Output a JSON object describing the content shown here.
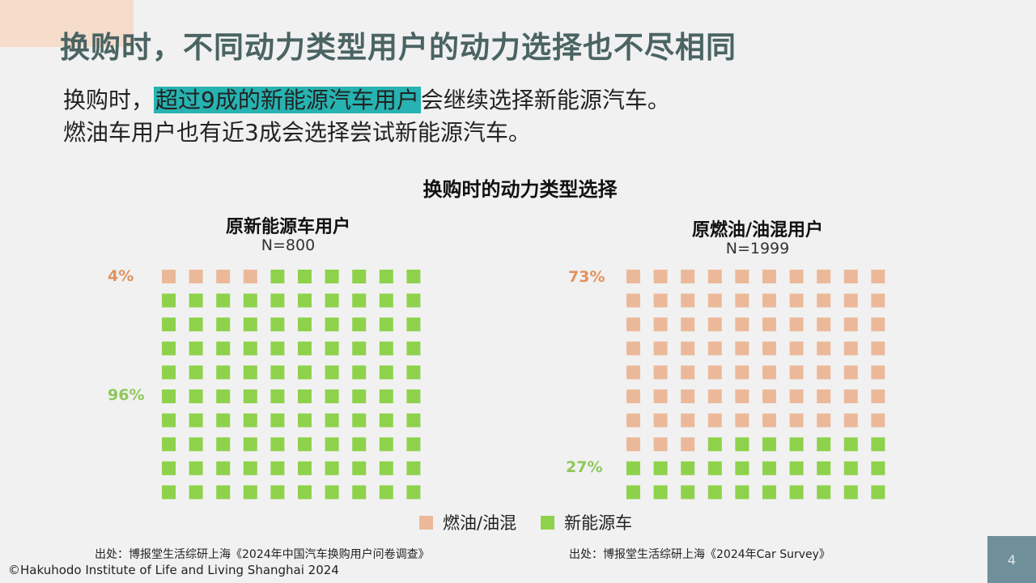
{
  "header": {
    "title": "换购时，不同动力类型用户的动力选择也不尽相同"
  },
  "summary": {
    "line1_prefix": "换购时，",
    "line1_highlight": "超过9成的新能源汽车用户",
    "line1_suffix": "会继续选择新能源汽车。",
    "line2": "燃油车用户也有近3成会选择尝试新能源汽车。"
  },
  "colors": {
    "fuel": "#ebb99a",
    "nev": "#8ed24b",
    "fuel_text": "#e2925f",
    "nev_text": "#8fc85a",
    "title": "#4a6463",
    "highlight": "#27b3b1"
  },
  "chart_data": {
    "type": "waffle",
    "title": "换购时的动力类型选择",
    "legend": [
      "燃油/油混",
      "新能源车"
    ],
    "legend_position": "bottom",
    "panels": [
      {
        "title": "原新能源车用户",
        "n_label": "N=800",
        "series": [
          {
            "name": "燃油/油混",
            "value": 4,
            "label": "4%"
          },
          {
            "name": "新能源车",
            "value": 96,
            "label": "96%"
          }
        ]
      },
      {
        "title": "原燃油/油混用户",
        "n_label": "N=1999",
        "series": [
          {
            "name": "燃油/油混",
            "value": 73,
            "label": "73%"
          },
          {
            "name": "新能源车",
            "value": 27,
            "label": "27%"
          }
        ]
      }
    ]
  },
  "footer": {
    "source_left": "出处：博报堂生活综研上海《2024年中国汽车换购用户问卷调查》",
    "source_right": "出处：博报堂生活综研上海《2024年Car Survey》",
    "copyright": "©Hakuhodo Institute of Life and Living Shanghai 2024",
    "page_number": "4"
  }
}
